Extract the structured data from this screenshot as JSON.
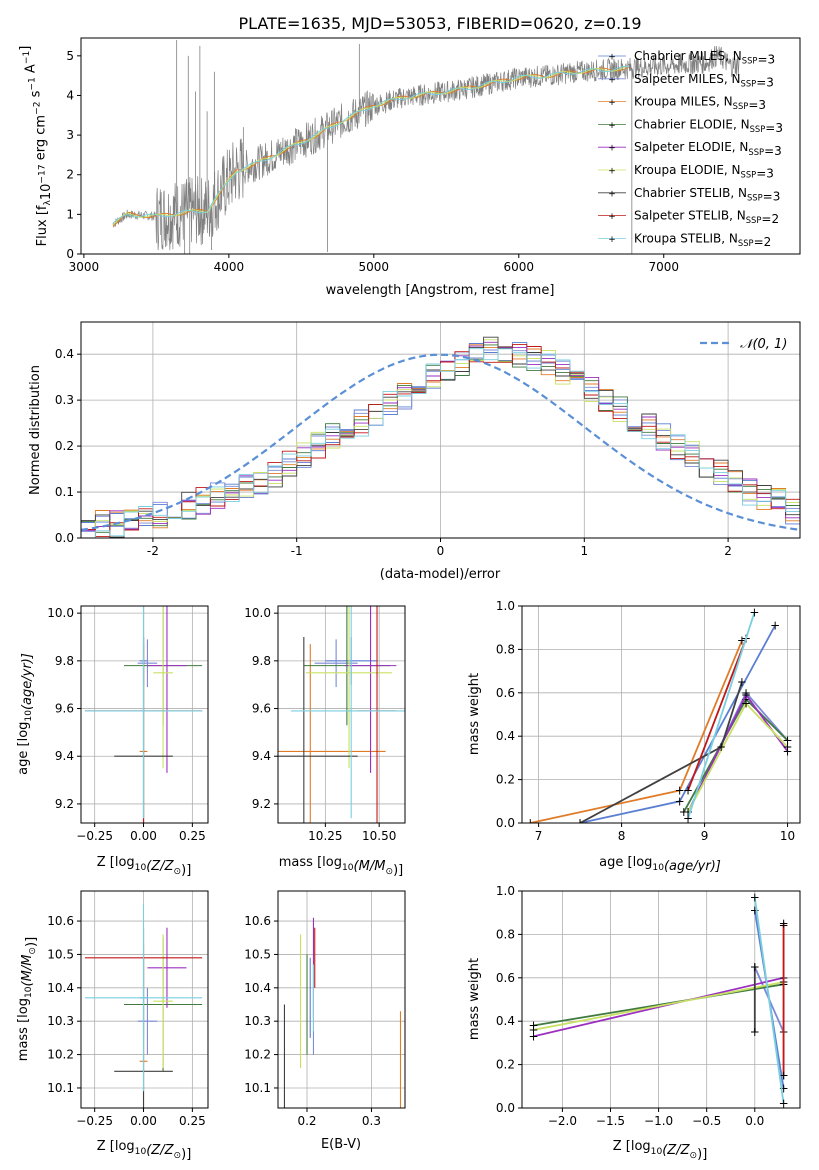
{
  "colors": {
    "chab_miles": "#5b7fd2",
    "salp_miles": "#7b8ad8",
    "krou_miles": "#e07b28",
    "chab_elodie": "#3f7a3f",
    "salp_elodie": "#9b2fc0",
    "krou_elodie": "#c8e063",
    "chab_stelib": "#404040",
    "salp_stelib": "#c01818",
    "krou_stelib": "#79cfe0",
    "data": "#808080",
    "normal": "#5b8fd6",
    "grid": "#b0b0b0"
  },
  "chart_data": [
    {
      "id": "spectrum",
      "type": "line",
      "title": "PLATE=1635, MJD=53053, FIBERID=0620, z=0.19",
      "xlabel": "wavelength [Angstrom, rest frame]",
      "ylabel_parts": [
        "Flux [f",
        "λ",
        "10",
        "−17",
        " erg cm",
        "−2",
        " s",
        "−1",
        " A",
        "−1",
        "]"
      ],
      "xlim": [
        2980,
        7940
      ],
      "ylim": [
        0,
        5.45
      ],
      "xticks": [
        3000,
        4000,
        5000,
        6000,
        7000
      ],
      "yticks": [
        0,
        1,
        2,
        3,
        4,
        5
      ],
      "grid": false,
      "legend_position": "top-right",
      "legend": [
        {
          "key": "chab_miles",
          "base": "Chabrier MILES, N",
          "sub": "SSP",
          "tail": "=3",
          "marker": "+"
        },
        {
          "key": "salp_miles",
          "base": "Salpeter MILES, N",
          "sub": "SSP",
          "tail": "=3",
          "marker": "+"
        },
        {
          "key": "krou_miles",
          "base": "Kroupa MILES, N",
          "sub": "SSP",
          "tail": "=3",
          "marker": "+"
        },
        {
          "key": "chab_elodie",
          "base": "Chabrier ELODIE, N",
          "sub": "SSP",
          "tail": "=3",
          "marker": "+"
        },
        {
          "key": "salp_elodie",
          "base": "Salpeter ELODIE, N",
          "sub": "SSP",
          "tail": "=3",
          "marker": "+"
        },
        {
          "key": "krou_elodie",
          "base": "Kroupa ELODIE, N",
          "sub": "SSP",
          "tail": "=3",
          "marker": "+"
        },
        {
          "key": "chab_stelib",
          "base": "Chabrier STELIB, N",
          "sub": "SSP",
          "tail": "=3",
          "marker": "+"
        },
        {
          "key": "salp_stelib",
          "base": "Salpeter STELIB, N",
          "sub": "SSP",
          "tail": "=2",
          "marker": "+"
        },
        {
          "key": "krou_stelib",
          "base": "Kroupa STELIB, N",
          "sub": "SSP",
          "tail": "=2",
          "marker": "+"
        }
      ],
      "continuum": [
        [
          3200,
          0.75
        ],
        [
          3300,
          1.0
        ],
        [
          3500,
          0.95
        ],
        [
          3700,
          1.05
        ],
        [
          3850,
          1.1
        ],
        [
          3950,
          1.6
        ],
        [
          4050,
          2.1
        ],
        [
          4200,
          2.3
        ],
        [
          4400,
          2.65
        ],
        [
          4600,
          3.0
        ],
        [
          4800,
          3.4
        ],
        [
          5000,
          3.75
        ],
        [
          5200,
          3.95
        ],
        [
          5400,
          4.05
        ],
        [
          5600,
          4.15
        ],
        [
          5800,
          4.3
        ],
        [
          6000,
          4.45
        ],
        [
          6200,
          4.5
        ],
        [
          6400,
          4.6
        ],
        [
          6600,
          4.65
        ],
        [
          6800,
          4.7
        ],
        [
          7000,
          4.75
        ],
        [
          7200,
          4.8
        ],
        [
          7400,
          4.85
        ],
        [
          7500,
          4.9
        ]
      ],
      "model_end": 6760,
      "data_spikes": [
        [
          3640,
          5.4
        ],
        [
          3695,
          0.0
        ],
        [
          3720,
          5.0
        ],
        [
          3730,
          0.0
        ],
        [
          3770,
          4.1
        ],
        [
          3800,
          5.25
        ],
        [
          3850,
          3.6
        ],
        [
          3880,
          0.1
        ],
        [
          3900,
          4.6
        ],
        [
          4100,
          3.2
        ],
        [
          4680,
          0.05
        ],
        [
          4900,
          5.3
        ],
        [
          6780,
          0.0
        ],
        [
          7200,
          5.0
        ]
      ]
    },
    {
      "id": "residuals",
      "type": "histogram",
      "xlabel": "(data-model)/error",
      "ylabel": "Normed distribution",
      "xlim": [
        -2.5,
        2.5
      ],
      "ylim": [
        0,
        0.47
      ],
      "xticks": [
        -2,
        -1,
        0,
        1,
        2
      ],
      "yticks": [
        0.0,
        0.1,
        0.2,
        0.3,
        0.4
      ],
      "grid": true,
      "legend_position": "top-right",
      "normal_label": "𝒩(0, 1)",
      "bin_width": 0.1,
      "bins_from": -2.5,
      "hist_estimate": [
        0.02,
        0.03,
        0.03,
        0.04,
        0.05,
        0.05,
        0.06,
        0.07,
        0.08,
        0.09,
        0.1,
        0.11,
        0.12,
        0.14,
        0.16,
        0.18,
        0.2,
        0.22,
        0.23,
        0.25,
        0.27,
        0.29,
        0.31,
        0.33,
        0.35,
        0.37,
        0.38,
        0.4,
        0.41,
        0.4,
        0.4,
        0.39,
        0.38,
        0.36,
        0.34,
        0.32,
        0.3,
        0.28,
        0.26,
        0.24,
        0.22,
        0.2,
        0.18,
        0.16,
        0.14,
        0.12,
        0.1,
        0.09,
        0.08,
        0.06
      ]
    },
    {
      "id": "z_age",
      "type": "scatter",
      "xlabel_parts": [
        "Z [log",
        "10",
        "(Z/Z",
        "⊙",
        ")]"
      ],
      "ylabel_parts": [
        "age  [log",
        "10",
        "(age/yr)]"
      ],
      "xlim": [
        -0.32,
        0.33
      ],
      "ylim": [
        9.12,
        10.03
      ],
      "xticks": [
        -0.25,
        0.0,
        0.25
      ],
      "xtick_labels": [
        "−0.25",
        "0.00",
        "0.25"
      ],
      "yticks": [
        9.2,
        9.4,
        9.6,
        9.8,
        10.0
      ],
      "grid": true
    },
    {
      "id": "mass_age",
      "type": "scatter",
      "xlabel_parts": [
        "mass [log",
        "10",
        "(M/M",
        "⊙",
        ")]"
      ],
      "xlim": [
        10.03,
        10.62
      ],
      "ylim": [
        9.12,
        10.03
      ],
      "xticks": [
        10.25,
        10.5
      ],
      "xtick_labels": [
        "10.25",
        "10.50"
      ],
      "yticks": [
        9.2,
        9.4,
        9.6,
        9.8,
        10.0
      ],
      "grid": true
    },
    {
      "id": "age_weight",
      "type": "line",
      "xlabel_parts": [
        "age  [log",
        "10",
        "(age/yr)]"
      ],
      "ylabel": "mass weight",
      "xlim": [
        6.8,
        10.15
      ],
      "ylim": [
        0,
        1.0
      ],
      "xticks": [
        7,
        8,
        9,
        10
      ],
      "yticks": [
        0.0,
        0.2,
        0.4,
        0.6,
        0.8,
        1.0
      ],
      "grid": true
    },
    {
      "id": "z_mass",
      "type": "scatter",
      "xlabel_parts": [
        "Z [log",
        "10",
        "(Z/Z",
        "⊙",
        ")]"
      ],
      "ylabel_parts": [
        "mass [log",
        "10",
        "(M/M",
        "⊙",
        ")]"
      ],
      "xlim": [
        -0.32,
        0.33
      ],
      "ylim": [
        10.04,
        10.69
      ],
      "xticks": [
        -0.25,
        0.0,
        0.25
      ],
      "xtick_labels": [
        "−0.25",
        "0.00",
        "0.25"
      ],
      "yticks": [
        10.1,
        10.2,
        10.3,
        10.4,
        10.5,
        10.6
      ],
      "grid": true
    },
    {
      "id": "ebv_mass",
      "type": "scatter",
      "xlabel": "E(B-V)",
      "xlim": [
        0.155,
        0.352
      ],
      "ylim": [
        10.04,
        10.69
      ],
      "xticks": [
        0.2,
        0.3
      ],
      "xtick_labels": [
        "0.2",
        "0.3"
      ],
      "yticks": [
        10.1,
        10.2,
        10.3,
        10.4,
        10.5,
        10.6
      ],
      "grid": true
    },
    {
      "id": "z_weight",
      "type": "line",
      "xlabel_parts": [
        "Z [log",
        "10",
        "(Z/Z",
        "⊙",
        ")]"
      ],
      "ylabel": "mass weight",
      "xlim": [
        -2.42,
        0.47
      ],
      "ylim": [
        0,
        1.0
      ],
      "xticks": [
        -2.0,
        -1.5,
        -1.0,
        -0.5,
        0.0
      ],
      "xtick_labels": [
        "−2.0",
        "−1.5",
        "−1.0",
        "−0.5",
        "0.0"
      ],
      "yticks": [
        0.0,
        0.2,
        0.4,
        0.6,
        0.8,
        1.0
      ],
      "grid": true
    }
  ],
  "fits": [
    {
      "key": "chab_miles",
      "Z": [
        0.0,
        0.3
      ],
      "Zerr": [
        0.02,
        0.3
      ],
      "age": 9.8,
      "ageerr": 0.1,
      "mass": 10.37,
      "masserr": 0.12,
      "ebv": 0.205,
      "ebverr": 0.12,
      "ages": [
        [
          7.5,
          0.0
        ],
        [
          8.7,
          0.1
        ],
        [
          9.85,
          0.91
        ]
      ],
      "zs": [
        [
          0.0,
          0.91
        ],
        [
          0.3,
          0.09
        ]
      ]
    },
    {
      "key": "salp_miles",
      "Z": [
        0.02,
        0.2
      ],
      "Zerr": [
        0.05,
        0.2
      ],
      "age": 9.79,
      "ageerr": 0.1,
      "mass": 10.3,
      "masserr": 0.1,
      "ebv": 0.21,
      "ebverr": 0.1,
      "ages": [
        [
          8.8,
          0.05
        ],
        [
          9.5,
          0.6
        ],
        [
          10.0,
          0.38
        ]
      ],
      "zs": [
        [
          0.0,
          0.65
        ],
        [
          0.3,
          0.35
        ]
      ]
    },
    {
      "key": "krou_miles",
      "Z": [
        0.0,
        0.3
      ],
      "Zerr": [
        0.02,
        0.3
      ],
      "age": 9.42,
      "ageerr": 0.45,
      "mass": 10.18,
      "masserr": 0.35,
      "ebv": 0.345,
      "ebverr": 0.15,
      "ages": [
        [
          6.9,
          0.0
        ],
        [
          8.7,
          0.15
        ],
        [
          9.45,
          0.84
        ]
      ],
      "zs": [
        [
          0.3,
          0.84
        ],
        [
          0.3,
          0.15
        ]
      ]
    },
    {
      "key": "chab_elodie",
      "Z": [
        0.1,
        0.3
      ],
      "Zerr": [
        0.2,
        0.3
      ],
      "age": 9.78,
      "ageerr": 0.25,
      "mass": 10.35,
      "masserr": 0.2,
      "ebv": 0.2,
      "ebverr": 0.15,
      "ages": [
        [
          8.75,
          0.05
        ],
        [
          9.5,
          0.57
        ],
        [
          10.0,
          0.38
        ]
      ],
      "zs": [
        [
          -2.3,
          0.38
        ],
        [
          0.3,
          0.57
        ]
      ]
    },
    {
      "key": "salp_elodie",
      "Z": [
        0.12,
        0.2
      ],
      "Zerr": [
        0.1,
        0.2
      ],
      "age": 9.78,
      "ageerr": 0.45,
      "mass": 10.46,
      "masserr": 0.12,
      "ebv": 0.21,
      "ebverr": 0.15,
      "ages": [
        [
          8.8,
          0.05
        ],
        [
          9.5,
          0.59
        ],
        [
          10.0,
          0.33
        ]
      ],
      "zs": [
        [
          -2.3,
          0.33
        ],
        [
          0.3,
          0.6
        ]
      ]
    },
    {
      "key": "krou_elodie",
      "Z": [
        0.1,
        0.3
      ],
      "Zerr": [
        0.05,
        0.3
      ],
      "age": 9.75,
      "ageerr": 0.4,
      "mass": 10.36,
      "masserr": 0.2,
      "ebv": 0.19,
      "ebverr": 0.2,
      "ages": [
        [
          8.8,
          0.05
        ],
        [
          9.5,
          0.55
        ],
        [
          10.0,
          0.35
        ]
      ],
      "zs": [
        [
          -2.3,
          0.36
        ],
        [
          0.3,
          0.58
        ]
      ]
    },
    {
      "key": "chab_stelib",
      "Z": [
        0.0,
        0.0
      ],
      "Zerr": [
        0.15,
        0.15
      ],
      "age": 9.4,
      "ageerr": 0.5,
      "mass": 10.15,
      "masserr": 0.25,
      "ebv": 0.165,
      "ebverr": 0.2,
      "ages": [
        [
          7.5,
          0.0
        ],
        [
          9.2,
          0.35
        ],
        [
          9.45,
          0.65
        ]
      ],
      "zs": [
        [
          0.0,
          0.65
        ],
        [
          0.0,
          0.35
        ]
      ]
    },
    {
      "key": "salp_stelib",
      "Z": [
        0.0,
        0.3
      ],
      "Zerr": [
        0.3,
        0.0
      ],
      "age": 9.59,
      "ageerr": 0.48,
      "mass": 10.49,
      "masserr": 0.09,
      "ebv": 0.212,
      "ebverr": 0.09,
      "ages": [
        [
          8.8,
          0.15
        ],
        [
          9.5,
          0.85
        ]
      ],
      "zs": [
        [
          0.3,
          0.15
        ],
        [
          0.3,
          0.85
        ]
      ]
    },
    {
      "key": "krou_stelib",
      "Z": [
        0.0,
        0.0
      ],
      "Zerr": [
        0.3,
        0.0
      ],
      "age": 9.59,
      "ageerr": 0.45,
      "mass": 10.37,
      "masserr": 0.28,
      "ebv": 0.21,
      "ebverr": 0.1,
      "ages": [
        [
          8.8,
          0.02
        ],
        [
          9.6,
          0.97
        ]
      ],
      "zs": [
        [
          0.0,
          0.97
        ],
        [
          0.3,
          0.02
        ]
      ]
    }
  ]
}
